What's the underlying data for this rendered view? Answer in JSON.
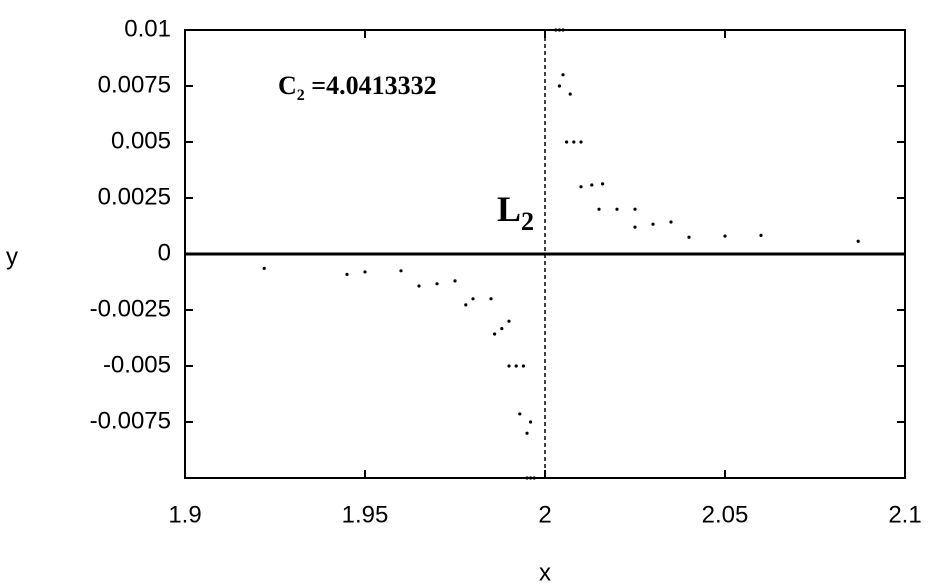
{
  "chart_data": {
    "type": "scatter",
    "x_label": "x",
    "y_label": "y",
    "xlim": [
      1.9,
      2.1
    ],
    "xticks": [
      1.9,
      1.95,
      2,
      2.05,
      2.1
    ],
    "ylim": [
      -0.01,
      0.01
    ],
    "yticks": [
      -0.0075,
      -0.005,
      -0.0025,
      0,
      0.0025,
      0.005,
      0.0075,
      0.01
    ],
    "vlines": [
      2
    ],
    "annotations": [
      {
        "base": "C",
        "sub": "2",
        "rest": " =4.0413332"
      },
      {
        "base": "L",
        "sub": "2",
        "rest": ""
      }
    ],
    "series": [
      {
        "color": "#000000",
        "x": [
          1.96,
          1.975,
          1.985,
          1.99,
          1.994,
          1.996,
          1.997,
          2.003,
          2.004,
          2.006,
          2.01,
          2.015,
          2.025,
          2.04
        ],
        "values": [
          -0.00075,
          -0.0012,
          -0.002,
          -0.003,
          -0.005,
          -0.0075,
          -0.01,
          0.01,
          0.0075,
          0.005,
          0.003,
          0.002,
          0.0012,
          0.00075
        ]
      },
      {
        "color": "#000000",
        "x": [
          1.95,
          1.97,
          1.98,
          1.988,
          1.992,
          1.995,
          1.996,
          2.004,
          2.005,
          2.008,
          2.013,
          2.02,
          2.03,
          2.05
        ],
        "values": [
          -0.0008,
          -0.00133,
          -0.002,
          -0.00333,
          -0.005,
          -0.008,
          -0.01,
          0.01,
          0.008,
          0.005,
          0.00308,
          0.002,
          0.00133,
          0.0008
        ]
      },
      {
        "color": "#000000",
        "x": [
          1.922,
          1.945,
          1.965,
          1.978,
          1.986,
          1.99,
          1.993,
          1.995,
          2.005,
          2.007,
          2.01,
          2.016,
          2.025,
          2.035,
          2.06,
          2.087
        ],
        "values": [
          -0.00064,
          -0.00091,
          -0.00143,
          -0.00227,
          -0.00357,
          -0.005,
          -0.00714,
          -0.01,
          0.01,
          0.00714,
          0.005,
          0.00313,
          0.002,
          0.00143,
          0.00083,
          0.00057
        ]
      }
    ]
  }
}
